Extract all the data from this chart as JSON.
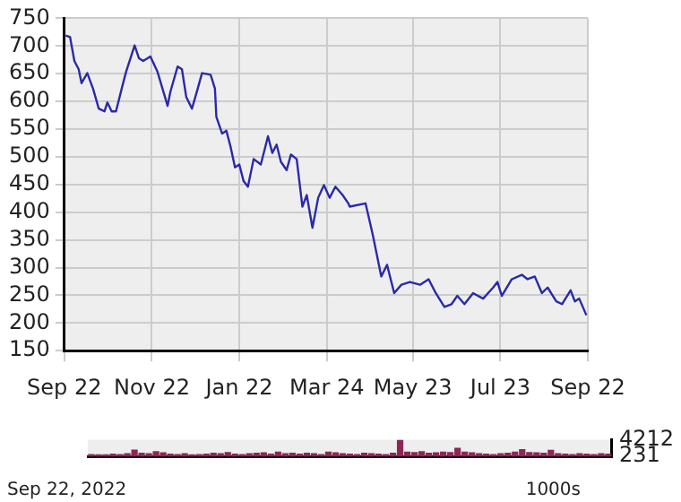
{
  "chart_data": [
    {
      "type": "line",
      "color": "#2a2aa8",
      "x": [
        "2021-09-23",
        "2021-09-26",
        "2021-09-29",
        "2021-10-02",
        "2021-10-04",
        "2021-10-08",
        "2021-10-12",
        "2021-10-16",
        "2021-10-20",
        "2021-10-22",
        "2021-10-25",
        "2021-10-28",
        "2021-11-01",
        "2021-11-04",
        "2021-11-10",
        "2021-11-13",
        "2021-11-16",
        "2021-11-21",
        "2021-11-26",
        "2021-12-03",
        "2021-12-05",
        "2021-12-10",
        "2021-12-13",
        "2021-12-16",
        "2021-12-20",
        "2021-12-24",
        "2021-12-27",
        "2022-01-02",
        "2022-01-05",
        "2022-01-06",
        "2022-01-10",
        "2022-01-13",
        "2022-01-16",
        "2022-01-19",
        "2022-01-22",
        "2022-01-25",
        "2022-01-28",
        "2022-02-01",
        "2022-02-06",
        "2022-02-11",
        "2022-02-14",
        "2022-02-17",
        "2022-02-20",
        "2022-02-24",
        "2022-02-27",
        "2022-03-03",
        "2022-03-07",
        "2022-03-10",
        "2022-03-14",
        "2022-03-18",
        "2022-03-22",
        "2022-03-26",
        "2022-03-30",
        "2022-04-04",
        "2022-04-08",
        "2022-04-09",
        "2022-04-20",
        "2022-04-25",
        "2022-05-01",
        "2022-05-05",
        "2022-05-10",
        "2022-05-15",
        "2022-05-21",
        "2022-05-28",
        "2022-06-03",
        "2022-06-08",
        "2022-06-14",
        "2022-06-19",
        "2022-06-23",
        "2022-06-28",
        "2022-07-04",
        "2022-07-11",
        "2022-07-18",
        "2022-07-21",
        "2022-07-24",
        "2022-07-31",
        "2022-08-07",
        "2022-08-11",
        "2022-08-16",
        "2022-08-21",
        "2022-08-25",
        "2022-08-31",
        "2022-09-04",
        "2022-09-10",
        "2022-09-13",
        "2022-09-16",
        "2022-09-21"
      ],
      "values": [
        719,
        716,
        673,
        658,
        633,
        651,
        623,
        587,
        582,
        598,
        582,
        582,
        623,
        653,
        701,
        678,
        673,
        681,
        653,
        592,
        618,
        663,
        658,
        608,
        587,
        623,
        651,
        648,
        623,
        572,
        542,
        547,
        517,
        481,
        486,
        456,
        446,
        496,
        486,
        537,
        507,
        522,
        491,
        476,
        504,
        496,
        410,
        431,
        372,
        426,
        449,
        426,
        446,
        431,
        416,
        410,
        416,
        360,
        284,
        305,
        254,
        269,
        274,
        269,
        279,
        254,
        229,
        234,
        249,
        234,
        254,
        244,
        264,
        274,
        249,
        279,
        287,
        279,
        284,
        254,
        264,
        239,
        234,
        259,
        239,
        244,
        214
      ],
      "xlim": [
        "2021-09-22",
        "2022-09-22"
      ],
      "xticks": [
        {
          "value": "2021-09-22",
          "label": "Sep 22"
        },
        {
          "value": "2021-11-22",
          "label": "Nov 22"
        },
        {
          "value": "2022-01-22",
          "label": "Jan 22"
        },
        {
          "value": "2022-03-24",
          "label": "Mar 24"
        },
        {
          "value": "2022-05-23",
          "label": "May 23"
        },
        {
          "value": "2022-07-23",
          "label": "Jul 23"
        },
        {
          "value": "2022-09-22",
          "label": "Sep 22"
        }
      ],
      "ylim": [
        150,
        750
      ],
      "yticks": [
        150,
        200,
        250,
        300,
        350,
        400,
        450,
        500,
        550,
        600,
        650,
        700,
        750
      ],
      "grid": true,
      "legend": false,
      "marker": "none",
      "line_style": "solid"
    },
    {
      "type": "bar",
      "color": "#8c2656",
      "categories": [
        null,
        null,
        null,
        null,
        null,
        null,
        null,
        null,
        null,
        null,
        null,
        null,
        null,
        null,
        null,
        null,
        null,
        null,
        null,
        null,
        null,
        null,
        null,
        null,
        null,
        null,
        null,
        null,
        null,
        null,
        null,
        null,
        null,
        null,
        null,
        null,
        null,
        null,
        null,
        null,
        null,
        null,
        null,
        null,
        null,
        null,
        null,
        null,
        null,
        null,
        null,
        null,
        null,
        null,
        null,
        null,
        null,
        null,
        null,
        null,
        null,
        null,
        null,
        null,
        null,
        null,
        null,
        null,
        null,
        null,
        null,
        null,
        null
      ],
      "values": [
        700,
        600,
        600,
        800,
        700,
        900,
        1800,
        1000,
        900,
        1400,
        1100,
        800,
        700,
        900,
        600,
        700,
        800,
        1000,
        900,
        1200,
        800,
        700,
        900,
        1000,
        1100,
        800,
        1300,
        900,
        1000,
        800,
        1000,
        900,
        700,
        1300,
        1100,
        900,
        800,
        700,
        1000,
        900,
        800,
        700,
        1000,
        4212,
        1300,
        1200,
        1400,
        1000,
        1100,
        1300,
        1200,
        2200,
        1300,
        1100,
        900,
        800,
        700,
        900,
        1000,
        1300,
        1900,
        1200,
        1100,
        1000,
        1700,
        900,
        800,
        700,
        900,
        800,
        700,
        900,
        800
      ],
      "ylim": [
        0,
        4212
      ],
      "yticks": [
        231,
        4212
      ],
      "tick_labels": "y",
      "annotations": [
        "1000s",
        "Sep 22, 2022"
      ]
    }
  ]
}
